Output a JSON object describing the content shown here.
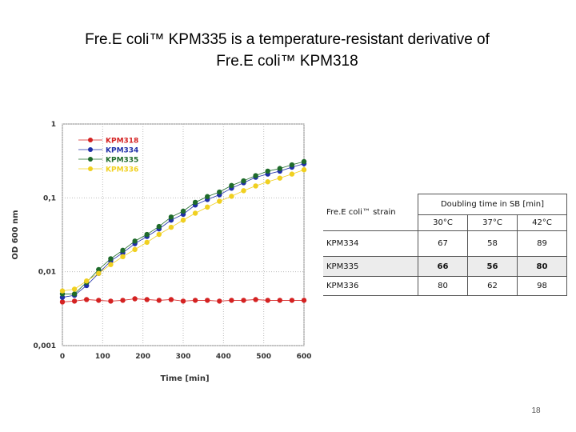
{
  "slide": {
    "title": [
      "Fre.E coli™ KPM335 is a temperature-resistant derivative of",
      "Fre.E coli™ KPM318"
    ],
    "page_number": "18"
  },
  "table": {
    "header": {
      "strain": "Fre.E coli™ strain",
      "group": "Doubling time in SB [min]",
      "columns": [
        "30°C",
        "37°C",
        "42°C"
      ]
    },
    "rows": [
      [
        "KPM334",
        67,
        58,
        89
      ],
      [
        "KPM335",
        66,
        56,
        80
      ],
      [
        "KPM336",
        80,
        62,
        98
      ]
    ]
  },
  "chart_data": {
    "type": "line",
    "x_label": "Time [min]",
    "y_label": "OD 600 nm",
    "x": [
      0,
      30,
      60,
      90,
      120,
      150,
      180,
      210,
      240,
      270,
      300,
      330,
      360,
      390,
      420,
      450,
      480,
      510,
      540,
      570,
      600
    ],
    "series": [
      {
        "name": "KPM318",
        "color": "#d42222",
        "values": [
          0.0039,
          0.004,
          0.0042,
          0.0041,
          0.004,
          0.0041,
          0.0043,
          0.0042,
          0.0041,
          0.0042,
          0.004,
          0.0041,
          0.0041,
          0.004,
          0.0041,
          0.0041,
          0.0042,
          0.0041,
          0.0041,
          0.0041,
          0.0041
        ]
      },
      {
        "name": "KPM334",
        "color": "#1f2fa8",
        "values": [
          0.0045,
          0.0048,
          0.0065,
          0.0095,
          0.014,
          0.018,
          0.024,
          0.03,
          0.038,
          0.05,
          0.06,
          0.08,
          0.095,
          0.11,
          0.135,
          0.16,
          0.19,
          0.21,
          0.23,
          0.26,
          0.29
        ]
      },
      {
        "name": "KPM335",
        "color": "#1e6b2a",
        "values": [
          0.005,
          0.005,
          0.0072,
          0.0107,
          0.015,
          0.0195,
          0.026,
          0.032,
          0.041,
          0.055,
          0.066,
          0.087,
          0.104,
          0.12,
          0.147,
          0.17,
          0.2,
          0.23,
          0.25,
          0.28,
          0.31
        ]
      },
      {
        "name": "KPM336",
        "color": "#f0d020",
        "values": [
          0.0055,
          0.0058,
          0.0075,
          0.0095,
          0.0125,
          0.016,
          0.02,
          0.025,
          0.032,
          0.04,
          0.05,
          0.062,
          0.075,
          0.09,
          0.105,
          0.125,
          0.145,
          0.165,
          0.185,
          0.21,
          0.24
        ]
      }
    ],
    "xlim": [
      0,
      600
    ],
    "xticks": [
      0,
      100,
      200,
      300,
      400,
      500,
      600
    ],
    "ylim": [
      0.001,
      1
    ],
    "log_y": true,
    "yticks": [
      {
        "value": 0.001,
        "label": "0,001"
      },
      {
        "value": 0.01,
        "label": "0,01"
      },
      {
        "value": 0.1,
        "label": "0,1"
      },
      1
    ],
    "grid": true,
    "legend": "top-left"
  }
}
